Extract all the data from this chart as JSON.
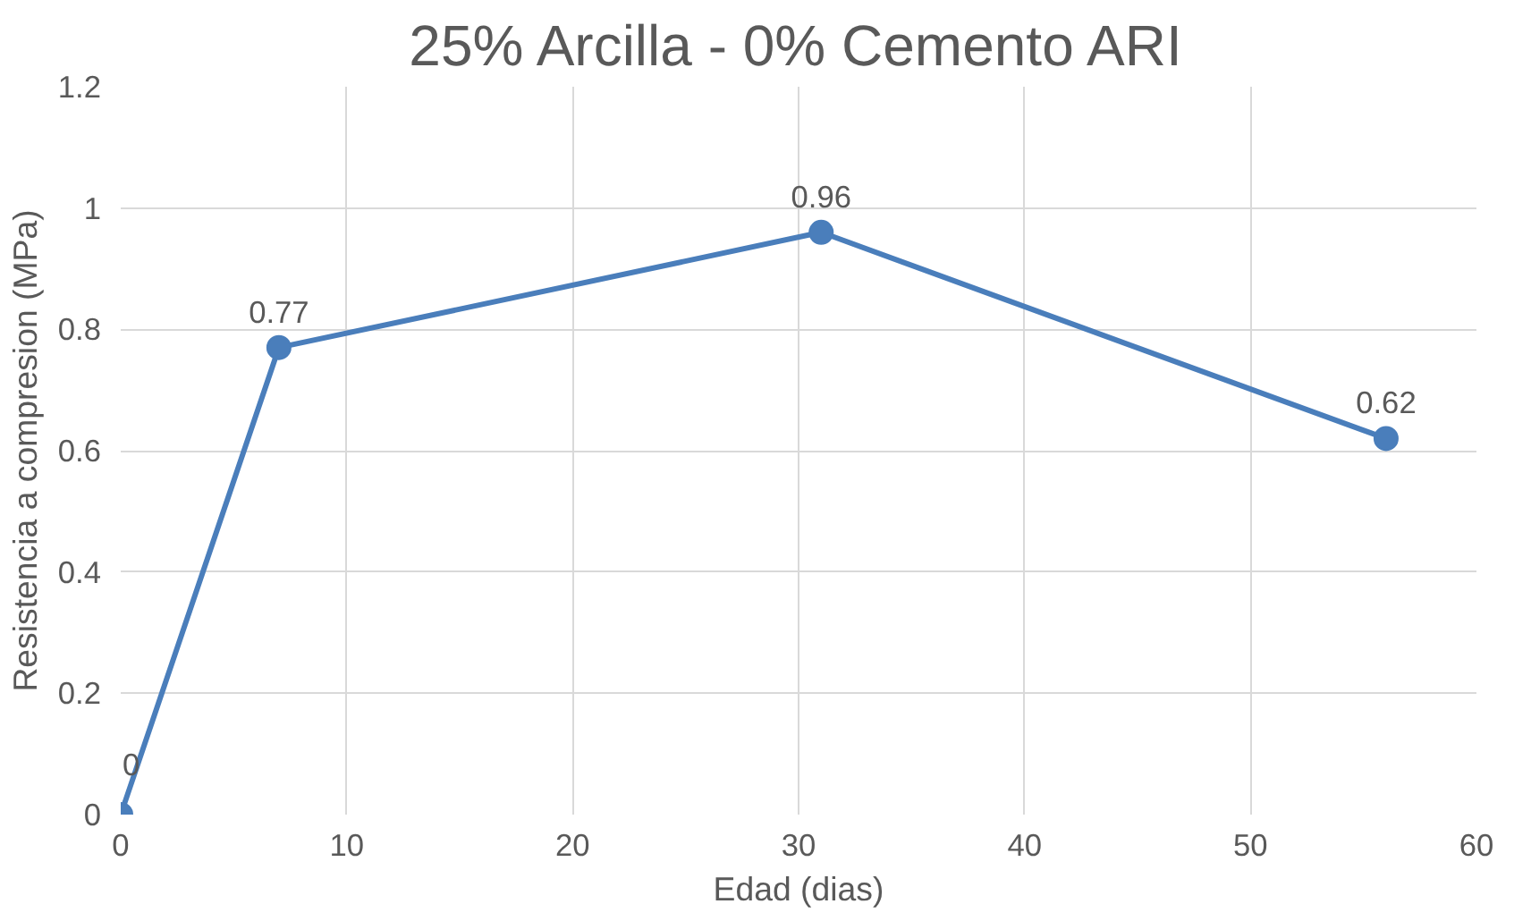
{
  "chart_data": {
    "type": "line",
    "title": "25% Arcilla - 0% Cemento ARI",
    "xlabel": "Edad (dias)",
    "ylabel": "Resistencia a compresion (MPa)",
    "x": [
      0,
      7,
      31,
      56
    ],
    "series": [
      {
        "color": "#4a7ebb",
        "values": [
          0,
          0.77,
          0.96,
          0.62
        ]
      }
    ],
    "xlim": [
      0,
      60
    ],
    "xticks": [
      0,
      10,
      20,
      30,
      40,
      50,
      60
    ],
    "ylim": [
      0,
      1.2
    ],
    "yticks": [
      0,
      0.2,
      0.4,
      0.6,
      0.8,
      1,
      1.2
    ],
    "grid": true,
    "marker": "circle",
    "line_style": "solid",
    "data_labels": true
  }
}
